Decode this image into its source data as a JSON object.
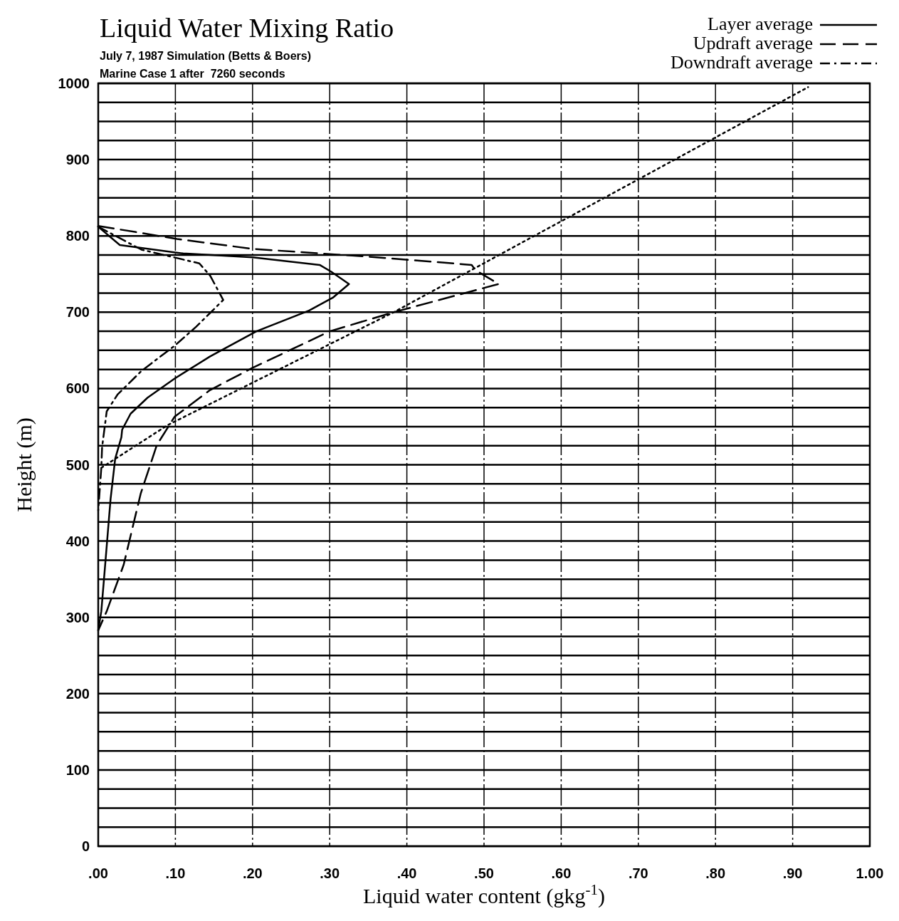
{
  "chart_data": {
    "type": "line",
    "title": "Liquid Water Mixing Ratio",
    "subtitle": "July 7, 1987 Simulation (Betts & Boers)",
    "annotations": [
      "Marine Case 1 after  7260 seconds"
    ],
    "xlabel": "Liquid water content (gkg$^{-1}$)",
    "ylabel": "Height (m)",
    "xlim": [
      0,
      1
    ],
    "xticks": [
      {
        "value": 0,
        "label": ".00"
      },
      {
        "value": 0.1,
        "label": ".10"
      },
      {
        "value": 0.2,
        "label": ".20"
      },
      {
        "value": 0.3,
        "label": ".30"
      },
      {
        "value": 0.4,
        "label": ".40"
      },
      {
        "value": 0.5,
        "label": ".50"
      },
      {
        "value": 0.6,
        "label": ".60"
      },
      {
        "value": 0.7,
        "label": ".70"
      },
      {
        "value": 0.8,
        "label": ".80"
      },
      {
        "value": 0.9,
        "label": ".90"
      },
      {
        "value": 1,
        "label": "1.00"
      }
    ],
    "ylim": [
      0,
      1000
    ],
    "yticks": [
      0,
      {
        "value": 25,
        "label": null
      },
      {
        "value": 50,
        "label": null
      },
      {
        "value": 75,
        "label": null
      },
      100,
      {
        "value": 125,
        "label": null
      },
      {
        "value": 150,
        "label": null
      },
      {
        "value": 175,
        "label": null
      },
      200,
      {
        "value": 225,
        "label": null
      },
      {
        "value": 250,
        "label": null
      },
      {
        "value": 275,
        "label": null
      },
      300,
      {
        "value": 325,
        "label": null
      },
      {
        "value": 350,
        "label": null
      },
      {
        "value": 375,
        "label": null
      },
      400,
      {
        "value": 425,
        "label": null
      },
      {
        "value": 450,
        "label": null
      },
      {
        "value": 475,
        "label": null
      },
      500,
      {
        "value": 525,
        "label": null
      },
      {
        "value": 550,
        "label": null
      },
      {
        "value": 575,
        "label": null
      },
      600,
      {
        "value": 625,
        "label": null
      },
      {
        "value": 650,
        "label": null
      },
      {
        "value": 675,
        "label": null
      },
      700,
      {
        "value": 725,
        "label": null
      },
      {
        "value": 750,
        "label": null
      },
      {
        "value": 775,
        "label": null
      },
      800,
      {
        "value": 825,
        "label": null
      },
      {
        "value": 850,
        "label": null
      },
      {
        "value": 875,
        "label": null
      },
      900,
      {
        "value": 925,
        "label": null
      },
      {
        "value": 950,
        "label": null
      },
      {
        "value": 975,
        "label": null
      },
      1000
    ],
    "grid": true,
    "legend": "top right",
    "marker": "none",
    "series": [
      {
        "name": "Layer average",
        "color": "#000000",
        "line_style": "solid",
        "x": [
          0,
          0.028,
          0.11,
          0.2,
          0.287,
          0.302,
          0.325,
          0.304,
          0.273,
          0.205,
          0.145,
          0.099,
          0.064,
          0.042,
          0.031,
          0.03,
          0.022,
          0.016,
          0.009,
          0.004,
          0
        ],
        "values": [
          812,
          788,
          777,
          772,
          762,
          753,
          737,
          719,
          702,
          675,
          642,
          613,
          588,
          567,
          546,
          536,
          508,
          455,
          369,
          308,
          283
        ]
      },
      {
        "name": "Updraft average",
        "color": "#000000",
        "line_style": "dashed",
        "x": [
          0,
          0.049,
          0.102,
          0.2,
          0.347,
          0.484,
          0.489,
          0.519,
          0.383,
          0.3,
          0.2,
          0.145,
          0.099,
          0.076,
          0.055,
          0.033,
          0.011,
          0
        ],
        "values": [
          813,
          805,
          796,
          783,
          773,
          762,
          755,
          737,
          700,
          675,
          627,
          598,
          563,
          526,
          462,
          369,
          308,
          283
        ]
      },
      {
        "name": "Downdraft average",
        "color": "#000000",
        "line_style": "dashdot",
        "x": [
          0,
          0.056,
          0.131,
          0.145,
          0.162,
          0.127,
          0.099,
          0.056,
          0.025,
          0.011,
          0.005,
          0.004,
          0
        ],
        "values": [
          812,
          782,
          764,
          748,
          716,
          681,
          656,
          623,
          592,
          570,
          523,
          496,
          440
        ]
      },
      {
        "color": "#000000",
        "line_style": "dotted",
        "x": [
          0.004,
          0.09,
          0.383,
          0.92
        ],
        "values": [
          496,
          552,
          700,
          995
        ]
      }
    ]
  }
}
